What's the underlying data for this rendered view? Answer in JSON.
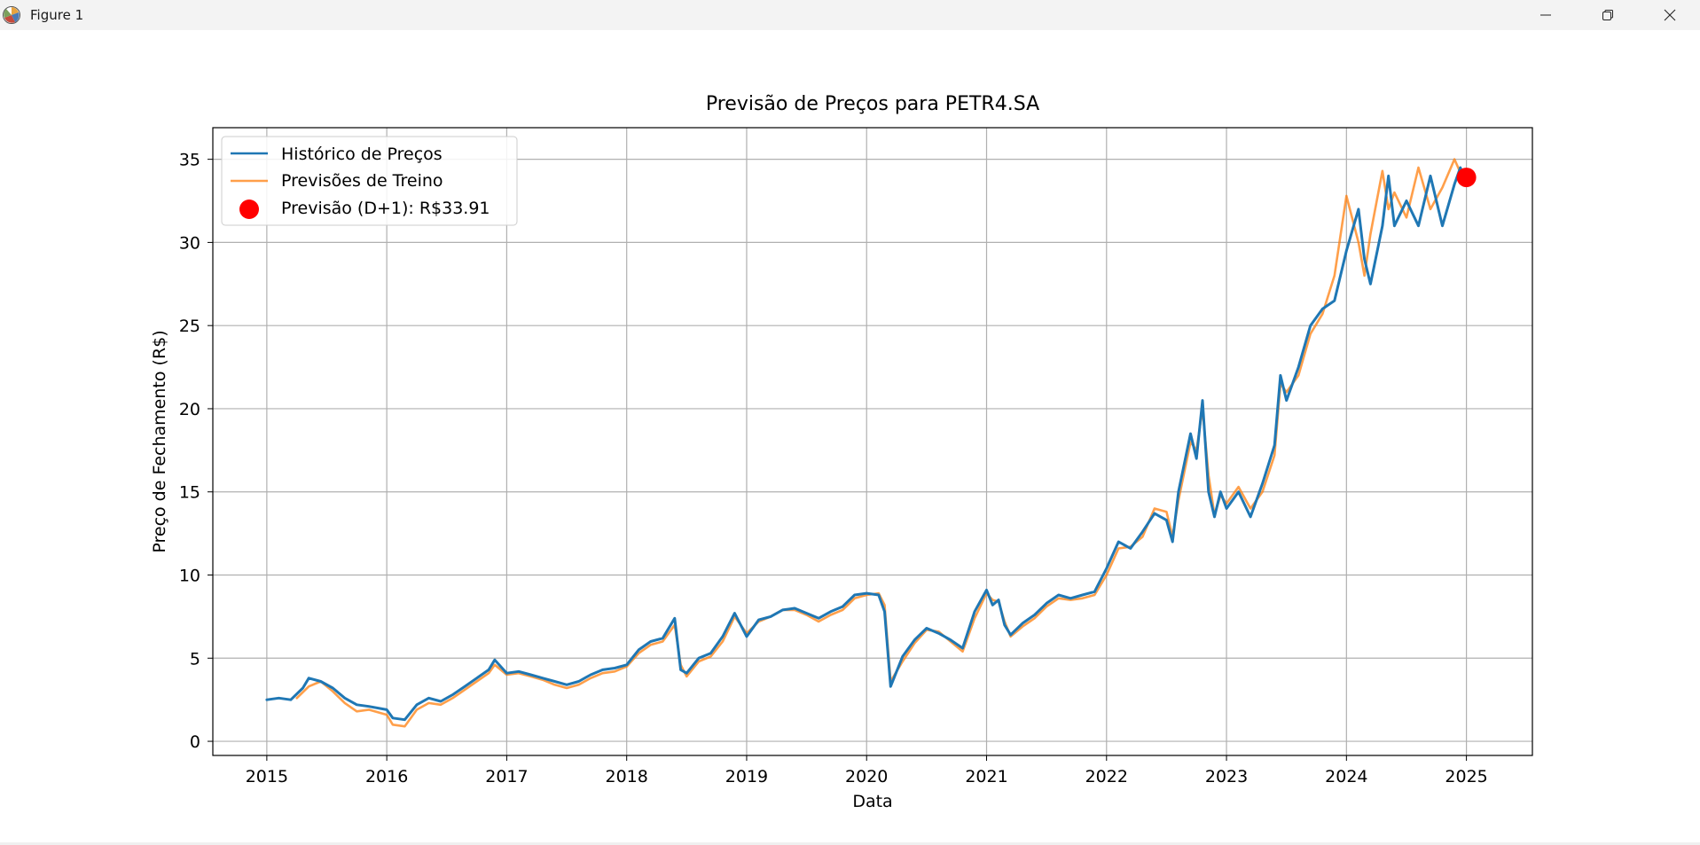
{
  "window": {
    "title": "Figure 1",
    "icon": "matplotlib-icon",
    "controls": {
      "minimize": "minimize-icon",
      "maximize": "maximize-icon",
      "close": "close-icon"
    }
  },
  "chart_data": {
    "type": "line",
    "title": "Previsão de Preços para PETR4.SA",
    "xlabel": "Data",
    "ylabel": "Preço de Fechamento (R$)",
    "xlim": [
      2014.55,
      2025.55
    ],
    "ylim": [
      -0.85,
      36.9
    ],
    "xticks": [
      2015,
      2016,
      2017,
      2018,
      2019,
      2020,
      2021,
      2022,
      2023,
      2024,
      2025
    ],
    "xtick_labels": [
      "2015",
      "2016",
      "2017",
      "2018",
      "2019",
      "2020",
      "2021",
      "2022",
      "2023",
      "2024",
      "2025"
    ],
    "yticks": [
      0,
      5,
      10,
      15,
      20,
      25,
      30,
      35
    ],
    "ytick_labels": [
      "0",
      "5",
      "10",
      "15",
      "20",
      "25",
      "30",
      "35"
    ],
    "grid": true,
    "legend_position": "upper-left",
    "legend": [
      "Histórico de Preços",
      "Previsões de Treino",
      "Previsão (D+1): R$33.91"
    ],
    "series": [
      {
        "name": "Histórico de Preços",
        "color": "#1f77b4",
        "x": [
          2015.0,
          2015.1,
          2015.2,
          2015.3,
          2015.35,
          2015.45,
          2015.55,
          2015.65,
          2015.75,
          2015.85,
          2016.0,
          2016.05,
          2016.15,
          2016.25,
          2016.35,
          2016.45,
          2016.55,
          2016.65,
          2016.75,
          2016.85,
          2016.9,
          2017.0,
          2017.1,
          2017.2,
          2017.3,
          2017.4,
          2017.5,
          2017.6,
          2017.7,
          2017.8,
          2017.9,
          2018.0,
          2018.1,
          2018.2,
          2018.3,
          2018.4,
          2018.45,
          2018.5,
          2018.6,
          2018.7,
          2018.8,
          2018.9,
          2019.0,
          2019.1,
          2019.2,
          2019.3,
          2019.4,
          2019.5,
          2019.6,
          2019.7,
          2019.8,
          2019.9,
          2020.0,
          2020.1,
          2020.15,
          2020.2,
          2020.3,
          2020.4,
          2020.5,
          2020.6,
          2020.7,
          2020.8,
          2020.9,
          2021.0,
          2021.05,
          2021.1,
          2021.15,
          2021.2,
          2021.3,
          2021.4,
          2021.5,
          2021.6,
          2021.7,
          2021.8,
          2021.9,
          2022.0,
          2022.1,
          2022.2,
          2022.3,
          2022.4,
          2022.5,
          2022.55,
          2022.6,
          2022.7,
          2022.75,
          2022.8,
          2022.85,
          2022.9,
          2022.95,
          2023.0,
          2023.1,
          2023.2,
          2023.3,
          2023.4,
          2023.45,
          2023.5,
          2023.6,
          2023.7,
          2023.8,
          2023.9,
          2024.0,
          2024.1,
          2024.15,
          2024.2,
          2024.3,
          2024.35,
          2024.4,
          2024.5,
          2024.6,
          2024.7,
          2024.8,
          2024.9,
          2024.95,
          2025.0
        ],
        "y": [
          2.5,
          2.6,
          2.5,
          3.2,
          3.8,
          3.6,
          3.2,
          2.6,
          2.2,
          2.1,
          1.9,
          1.4,
          1.3,
          2.2,
          2.6,
          2.4,
          2.8,
          3.3,
          3.8,
          4.3,
          4.9,
          4.1,
          4.2,
          4.0,
          3.8,
          3.6,
          3.4,
          3.6,
          4.0,
          4.3,
          4.4,
          4.6,
          5.5,
          6.0,
          6.2,
          7.4,
          4.3,
          4.1,
          5.0,
          5.3,
          6.3,
          7.7,
          6.3,
          7.3,
          7.5,
          7.9,
          8.0,
          7.7,
          7.4,
          7.8,
          8.1,
          8.8,
          8.9,
          8.8,
          7.8,
          3.3,
          5.1,
          6.1,
          6.8,
          6.5,
          6.1,
          5.6,
          7.8,
          9.1,
          8.2,
          8.5,
          7.0,
          6.4,
          7.1,
          7.6,
          8.3,
          8.8,
          8.6,
          8.8,
          9.0,
          10.4,
          12.0,
          11.6,
          12.6,
          13.7,
          13.3,
          12.0,
          15.0,
          18.5,
          17.0,
          20.5,
          15.0,
          13.5,
          15.0,
          14.0,
          15.0,
          13.5,
          15.5,
          17.8,
          22.0,
          20.5,
          22.5,
          25.0,
          26.0,
          26.5,
          29.5,
          32.0,
          29.0,
          27.5,
          31.0,
          34.0,
          31.0,
          32.5,
          31.0,
          34.0,
          31.0,
          33.5,
          34.5,
          33.5
        ]
      },
      {
        "name": "Previsões de Treino",
        "color": "#ff7f0e",
        "x": [
          2015.25,
          2015.35,
          2015.45,
          2015.55,
          2015.65,
          2015.75,
          2015.85,
          2016.0,
          2016.05,
          2016.15,
          2016.25,
          2016.35,
          2016.45,
          2016.55,
          2016.65,
          2016.75,
          2016.85,
          2016.9,
          2017.0,
          2017.1,
          2017.2,
          2017.3,
          2017.4,
          2017.5,
          2017.6,
          2017.7,
          2017.8,
          2017.9,
          2018.0,
          2018.1,
          2018.2,
          2018.3,
          2018.4,
          2018.45,
          2018.5,
          2018.6,
          2018.7,
          2018.8,
          2018.9,
          2019.0,
          2019.1,
          2019.2,
          2019.3,
          2019.4,
          2019.5,
          2019.6,
          2019.7,
          2019.8,
          2019.9,
          2020.0,
          2020.1,
          2020.15,
          2020.2,
          2020.3,
          2020.4,
          2020.5,
          2020.6,
          2020.7,
          2020.8,
          2020.9,
          2021.0,
          2021.05,
          2021.1,
          2021.15,
          2021.2,
          2021.3,
          2021.4,
          2021.5,
          2021.6,
          2021.7,
          2021.8,
          2021.9,
          2022.0,
          2022.1,
          2022.2,
          2022.3,
          2022.4,
          2022.5,
          2022.55,
          2022.6,
          2022.7,
          2022.75,
          2022.8,
          2022.85,
          2022.9,
          2022.95,
          2023.0,
          2023.1,
          2023.2,
          2023.3,
          2023.4,
          2023.45,
          2023.5,
          2023.6,
          2023.7,
          2023.8,
          2023.9,
          2024.0,
          2024.1,
          2024.15,
          2024.2,
          2024.3,
          2024.35,
          2024.4,
          2024.5,
          2024.6,
          2024.7,
          2024.8,
          2024.9,
          2024.95
        ],
        "y": [
          2.6,
          3.3,
          3.6,
          3.0,
          2.3,
          1.8,
          1.9,
          1.6,
          1.0,
          0.9,
          1.9,
          2.3,
          2.2,
          2.6,
          3.1,
          3.6,
          4.1,
          4.6,
          4.0,
          4.1,
          3.9,
          3.7,
          3.4,
          3.2,
          3.4,
          3.8,
          4.1,
          4.2,
          4.5,
          5.3,
          5.8,
          6.0,
          7.0,
          4.6,
          3.9,
          4.8,
          5.1,
          6.0,
          7.5,
          6.5,
          7.2,
          7.5,
          7.9,
          7.9,
          7.6,
          7.2,
          7.6,
          7.9,
          8.6,
          8.8,
          8.9,
          8.2,
          3.6,
          4.8,
          5.9,
          6.7,
          6.6,
          6.0,
          5.4,
          7.4,
          8.9,
          8.5,
          8.4,
          7.2,
          6.3,
          6.9,
          7.4,
          8.1,
          8.6,
          8.5,
          8.6,
          8.8,
          10.0,
          11.6,
          11.7,
          12.3,
          14.0,
          13.8,
          12.3,
          14.5,
          18.0,
          17.5,
          20.0,
          16.0,
          13.6,
          14.8,
          14.3,
          15.3,
          14.0,
          15.0,
          17.2,
          21.5,
          21.0,
          22.0,
          24.5,
          25.7,
          28.0,
          32.8,
          30.0,
          28.0,
          30.5,
          34.3,
          32.0,
          33.0,
          31.5,
          34.5,
          32.0,
          33.3,
          35.0,
          34.2
        ]
      }
    ],
    "forecast": {
      "label": "Previsão (D+1): R$33.91",
      "x": 2025.0,
      "y": 33.91,
      "color": "#ff0000"
    }
  }
}
